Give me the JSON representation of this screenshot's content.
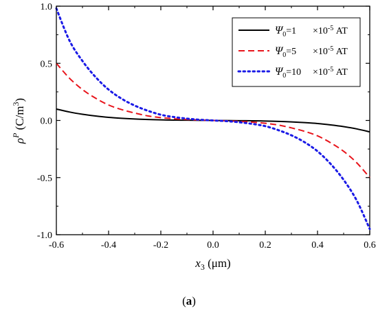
{
  "chart_data": {
    "type": "line",
    "xlabel": {
      "symbol": "x",
      "subscript": "3",
      "unit": " (μm)"
    },
    "ylabel": {
      "symbol": "ρ",
      "superscript": "P",
      "unit_prefix": " (C/m",
      "unit_power": "3",
      "unit_suffix": ")"
    },
    "xlim": [
      -0.6,
      0.6
    ],
    "ylim": [
      -1.0,
      1.0
    ],
    "xticks": [
      -0.6,
      -0.4,
      -0.2,
      0.0,
      0.2,
      0.4,
      0.6
    ],
    "xtick_labels": [
      "-0.6",
      "-0.4",
      "-0.2",
      "0.0",
      "0.2",
      "0.4",
      "0.6"
    ],
    "yticks": [
      -1.0,
      -0.5,
      0.0,
      0.5,
      1.0
    ],
    "ytick_labels": [
      "-1.0",
      "-0.5",
      "0.0",
      "0.5",
      "1.0"
    ],
    "grid": false,
    "legend_position": "top-right",
    "panel_label": {
      "open": "(",
      "letter": "a",
      "close": ")"
    },
    "series": [
      {
        "symbol": "Ψ",
        "sub": "0",
        "value": "=1",
        "factor": "×10",
        "exp": "-5",
        "unit": " AT",
        "color": "#000000",
        "dash": "solid",
        "x": [
          -0.6,
          -0.55,
          -0.5,
          -0.45,
          -0.4,
          -0.35,
          -0.3,
          -0.25,
          -0.2,
          -0.15,
          -0.1,
          -0.05,
          0.0,
          0.05,
          0.1,
          0.15,
          0.2,
          0.25,
          0.3,
          0.35,
          0.4,
          0.45,
          0.5,
          0.55,
          0.6
        ],
        "y": [
          0.1,
          0.074,
          0.054,
          0.039,
          0.027,
          0.019,
          0.013,
          0.008,
          0.005,
          0.003,
          0.002,
          0.001,
          0.0,
          -0.001,
          -0.002,
          -0.003,
          -0.005,
          -0.008,
          -0.013,
          -0.019,
          -0.027,
          -0.039,
          -0.054,
          -0.074,
          -0.1
        ]
      },
      {
        "symbol": "Ψ",
        "sub": "0",
        "value": "=5",
        "factor": "×10",
        "exp": "-5",
        "unit": " AT",
        "color": "#e8141b",
        "dash": "dashed",
        "x": [
          -0.6,
          -0.55,
          -0.5,
          -0.45,
          -0.4,
          -0.35,
          -0.3,
          -0.25,
          -0.2,
          -0.15,
          -0.1,
          -0.05,
          0.0,
          0.05,
          0.1,
          0.15,
          0.2,
          0.25,
          0.3,
          0.35,
          0.4,
          0.45,
          0.5,
          0.55,
          0.6
        ],
        "y": [
          0.5,
          0.37,
          0.27,
          0.195,
          0.135,
          0.095,
          0.065,
          0.04,
          0.025,
          0.015,
          0.008,
          0.003,
          0.0,
          -0.003,
          -0.008,
          -0.015,
          -0.025,
          -0.04,
          -0.065,
          -0.095,
          -0.135,
          -0.195,
          -0.27,
          -0.37,
          -0.5
        ]
      },
      {
        "symbol": "Ψ",
        "sub": "0",
        "value": "=10",
        "factor": "×10",
        "exp": "-5",
        "unit": " AT",
        "color": "#1a1ae6",
        "dash": "dotted",
        "x": [
          -0.6,
          -0.55,
          -0.5,
          -0.45,
          -0.4,
          -0.35,
          -0.3,
          -0.25,
          -0.2,
          -0.15,
          -0.1,
          -0.05,
          0.0,
          0.05,
          0.1,
          0.15,
          0.2,
          0.25,
          0.3,
          0.35,
          0.4,
          0.45,
          0.5,
          0.55,
          0.6
        ],
        "y": [
          0.98,
          0.7,
          0.52,
          0.38,
          0.27,
          0.19,
          0.13,
          0.085,
          0.05,
          0.03,
          0.016,
          0.006,
          0.0,
          -0.006,
          -0.016,
          -0.03,
          -0.05,
          -0.085,
          -0.13,
          -0.19,
          -0.27,
          -0.38,
          -0.52,
          -0.7,
          -0.95
        ]
      }
    ]
  }
}
